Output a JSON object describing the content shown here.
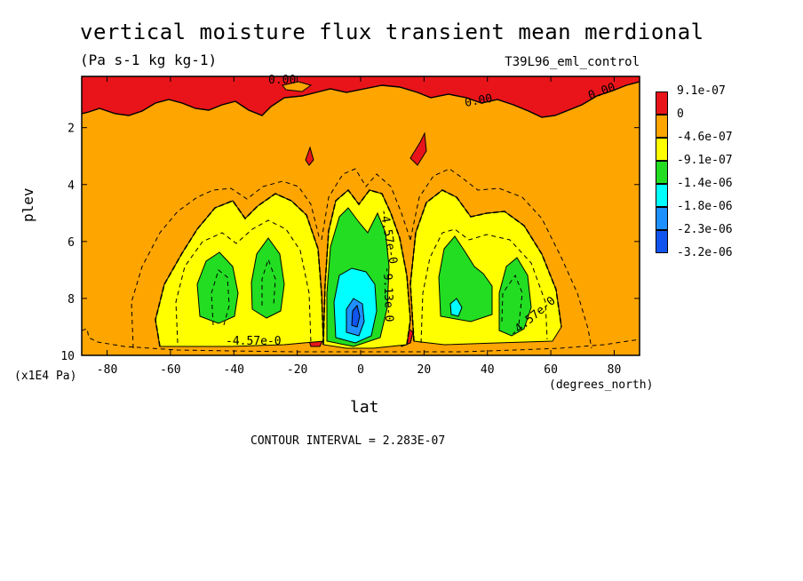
{
  "title": "vertical moisture flux transient mean merdional",
  "units": "(Pa s-1 kg kg-1)",
  "run_name": "T39L96_eml_control",
  "contour_interval": "CONTOUR INTERVAL = 2.283E-07",
  "chart_data": {
    "type": "contour",
    "title": "vertical moisture flux transient mean merdional",
    "units": "(Pa s-1 kg kg-1)",
    "xlabel": "lat",
    "xunits": "(degrees_north)",
    "ylabel": "plev",
    "yscale_label": "(x1E4 Pa)",
    "xlim": [
      -88,
      88
    ],
    "ylim": [
      0.2,
      10
    ],
    "y_inverted": true,
    "x_ticks": [
      "-80",
      "-60",
      "-40",
      "-20",
      "0",
      "20",
      "40",
      "60",
      "80"
    ],
    "x_tick_values": [
      -80,
      -60,
      -40,
      -20,
      0,
      20,
      40,
      60,
      80
    ],
    "y_ticks": [
      "2",
      "4",
      "6",
      "8",
      "10"
    ],
    "y_tick_values": [
      2,
      4,
      6,
      8,
      10
    ],
    "colorbar": {
      "colors": [
        "#e8141a",
        "#ffa500",
        "#ffff00",
        "#22dd22",
        "#00ffff",
        "#1e90ff",
        "#1155ee"
      ],
      "labels": [
        "9.1e-07",
        "0",
        "-4.6e-07",
        "-9.1e-07",
        "-1.4e-06",
        "-1.8e-06",
        "-2.3e-06",
        "-3.2e-06"
      ]
    },
    "contour_labels": [
      "0.00",
      "0.00",
      "0.00",
      "-4.57e-0",
      "-4.57e-0",
      "-4.57e-0",
      "-9.13e-0"
    ],
    "contour_interval": 2.283e-07,
    "features": [
      {
        "lat": -48,
        "plev": 8.0,
        "level": "-9.1e-07"
      },
      {
        "lat": -28,
        "plev": 7.8,
        "level": "-9.1e-07"
      },
      {
        "lat": 0,
        "plev": 8.0,
        "level": "-1.8e-06"
      },
      {
        "lat": 0,
        "plev": 8.6,
        "level": "-3.2e-06"
      },
      {
        "lat": 30,
        "plev": 7.6,
        "level": "-9.1e-07"
      },
      {
        "lat": 48,
        "plev": 8.3,
        "level": "-9.1e-07"
      }
    ]
  }
}
